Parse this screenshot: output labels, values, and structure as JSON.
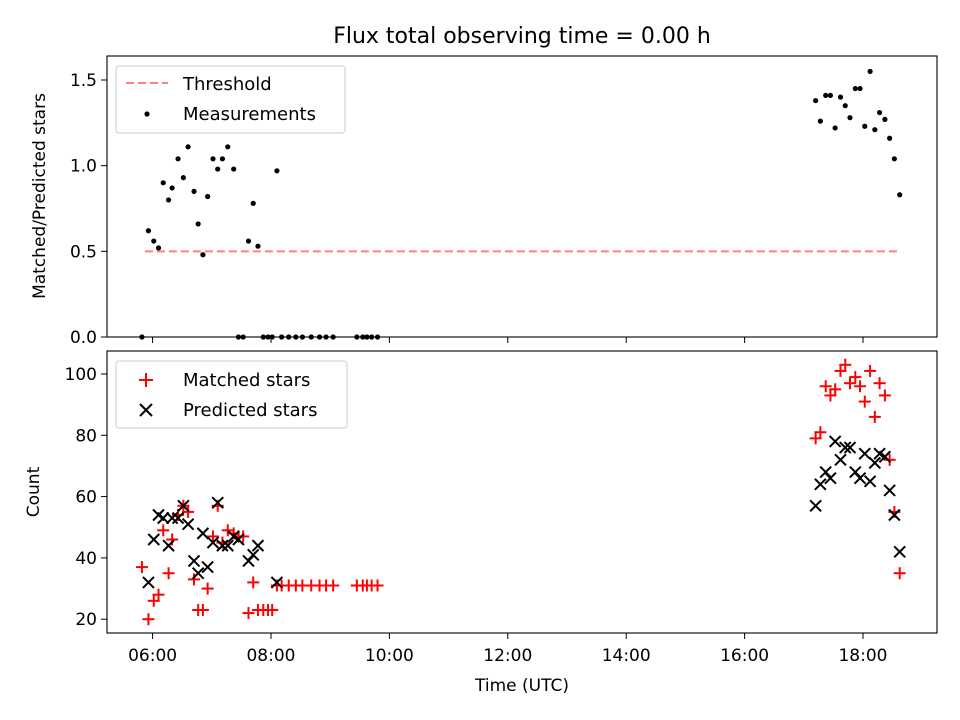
{
  "chart_data": {
    "title": "Flux total observing time = 0.00 h",
    "xlabel": "Time (UTC)",
    "x_ticks": [
      "06:00",
      "08:00",
      "10:00",
      "12:00",
      "14:00",
      "16:00",
      "18:00"
    ],
    "x_tick_hours": [
      6,
      8,
      10,
      12,
      14,
      16,
      18
    ],
    "xlim_hours": [
      5.23,
      19.25
    ],
    "panels": [
      {
        "type": "scatter+line",
        "ylabel": "Matched/Predicted stars",
        "ylim": [
          0,
          1.64
        ],
        "y_ticks": [
          0.0,
          0.5,
          1.0,
          1.5
        ],
        "y_tick_labels": [
          "0.0",
          "0.5",
          "1.0",
          "1.5"
        ],
        "legend": [
          "Threshold",
          "Measurements"
        ],
        "threshold": {
          "name": "Threshold",
          "y": 0.5,
          "x_range_hours": [
            5.87,
            18.6
          ],
          "color": "#ff7f7f"
        },
        "measurements": {
          "name": "Measurements",
          "color": "#000000",
          "x_hours": [
            5.82,
            5.93,
            6.02,
            6.1,
            6.18,
            6.27,
            6.33,
            6.43,
            6.52,
            6.6,
            6.7,
            6.77,
            6.85,
            6.93,
            7.02,
            7.1,
            7.18,
            7.27,
            7.37,
            7.45,
            7.53,
            7.62,
            7.7,
            7.78,
            7.87,
            7.95,
            8.02,
            8.1,
            8.18,
            8.3,
            8.42,
            8.53,
            8.68,
            8.82,
            8.93,
            9.05,
            9.45,
            9.55,
            9.62,
            9.7,
            9.8,
            17.2,
            17.28,
            17.37,
            17.45,
            17.53,
            17.62,
            17.7,
            17.78,
            17.87,
            17.95,
            18.03,
            18.12,
            18.2,
            18.28,
            18.37,
            18.45,
            18.53,
            18.62
          ],
          "y": [
            0.0,
            0.62,
            0.56,
            0.52,
            0.9,
            0.8,
            0.87,
            1.04,
            0.93,
            1.11,
            0.85,
            0.66,
            0.48,
            0.82,
            1.04,
            0.98,
            1.04,
            1.11,
            0.98,
            0.0,
            0.0,
            0.56,
            0.78,
            0.53,
            0.0,
            0.0,
            0.0,
            0.97,
            0.0,
            0.0,
            0.0,
            0.0,
            0.0,
            0.0,
            0.0,
            0.0,
            0.0,
            0.0,
            0.0,
            0.0,
            0.0,
            1.38,
            1.26,
            1.41,
            1.41,
            1.22,
            1.4,
            1.35,
            1.28,
            1.45,
            1.45,
            1.23,
            1.55,
            1.21,
            1.31,
            1.27,
            1.16,
            1.04,
            0.83
          ]
        }
      },
      {
        "type": "scatter",
        "ylabel": "Count",
        "ylim": [
          15.5,
          107.5
        ],
        "y_ticks": [
          20,
          40,
          60,
          80,
          100
        ],
        "y_tick_labels": [
          "20",
          "40",
          "60",
          "80",
          "100"
        ],
        "legend": [
          "Matched stars",
          "Predicted stars"
        ],
        "series": [
          {
            "name": "Matched stars",
            "marker": "plus",
            "color": "#ff0000",
            "x_hours": [
              5.82,
              5.93,
              6.02,
              6.1,
              6.18,
              6.27,
              6.33,
              6.43,
              6.52,
              6.6,
              6.7,
              6.77,
              6.85,
              6.93,
              7.02,
              7.1,
              7.18,
              7.27,
              7.37,
              7.45,
              7.53,
              7.62,
              7.7,
              7.78,
              7.87,
              7.95,
              8.02,
              8.1,
              8.18,
              8.3,
              8.42,
              8.53,
              8.68,
              8.82,
              8.93,
              9.05,
              9.45,
              9.55,
              9.62,
              9.7,
              9.8,
              17.2,
              17.28,
              17.37,
              17.45,
              17.53,
              17.62,
              17.7,
              17.78,
              17.87,
              17.95,
              18.03,
              18.12,
              18.2,
              18.28,
              18.37,
              18.45,
              18.53,
              18.62
            ],
            "y": [
              37,
              20,
              26,
              28,
              49,
              35,
              46,
              54,
              57,
              55,
              33,
              23,
              23,
              30,
              47,
              57,
              45,
              49,
              48,
              47,
              47,
              22,
              32,
              23,
              23,
              23,
              23,
              31,
              31,
              31,
              31,
              31,
              31,
              31,
              31,
              31,
              31,
              31,
              31,
              31,
              31,
              79,
              81,
              96,
              93,
              95,
              101,
              103,
              97,
              99,
              96,
              91,
              101,
              86,
              97,
              93,
              72,
              55,
              35
            ]
          },
          {
            "name": "Predicted stars",
            "marker": "x",
            "color": "#000000",
            "x_hours": [
              5.93,
              6.02,
              6.1,
              6.18,
              6.27,
              6.33,
              6.43,
              6.52,
              6.6,
              6.7,
              6.77,
              6.85,
              6.93,
              7.02,
              7.1,
              7.18,
              7.27,
              7.37,
              7.45,
              7.62,
              7.7,
              7.78,
              8.1,
              17.2,
              17.28,
              17.37,
              17.45,
              17.53,
              17.62,
              17.7,
              17.78,
              17.87,
              17.95,
              18.03,
              18.12,
              18.2,
              18.28,
              18.37,
              18.45,
              18.53,
              18.62
            ],
            "y": [
              32,
              46,
              54,
              53,
              44,
              53,
              53,
              57,
              51,
              39,
              35,
              48,
              37,
              45,
              58,
              44,
              44,
              47,
              46,
              39,
              41,
              44,
              32,
              57,
              64,
              68,
              66,
              78,
              72,
              76,
              76,
              68,
              66,
              74,
              65,
              71,
              74,
              73,
              62,
              54,
              42
            ]
          }
        ]
      }
    ]
  }
}
